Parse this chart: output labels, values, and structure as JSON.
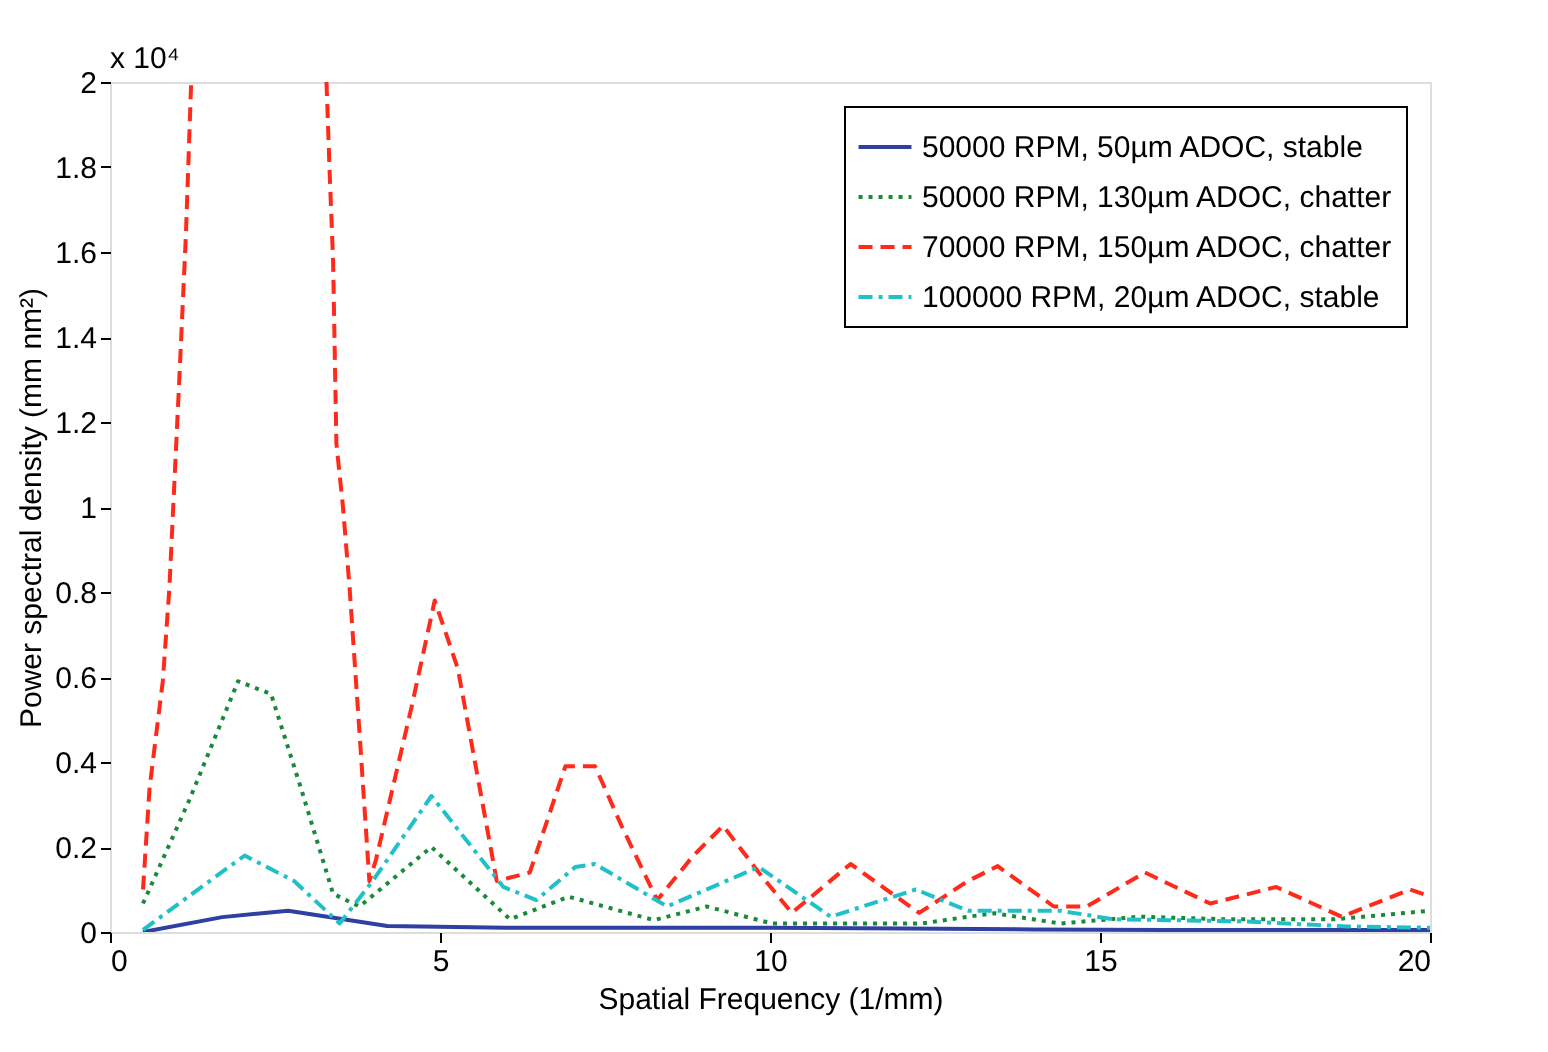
{
  "chart_data": {
    "type": "line",
    "xlabel": "Spatial Frequency (1/mm)",
    "ylabel": "Power spectral density (mm nm²)",
    "annotations": [
      "x 10⁴"
    ],
    "xlim": [
      0,
      20
    ],
    "xticks": [
      0,
      5,
      10,
      15,
      20
    ],
    "ylim": [
      0,
      2
    ],
    "yticks": [
      0,
      0.2,
      0.4,
      0.6,
      0.8,
      1,
      1.2,
      1.4,
      1.6,
      1.8,
      2
    ],
    "grid": false,
    "legend": "top right",
    "marker": "none",
    "series": [
      {
        "name": "50000 RPM, 50µm ADOC, stable",
        "color": "#3040a0",
        "line_style": "solid",
        "x": [
          0.5,
          1.7,
          2.7,
          4.2,
          6,
          8,
          10,
          12,
          14,
          16,
          18,
          20
        ],
        "values": [
          0,
          0.035,
          0.05,
          0.014,
          0.01,
          0.01,
          0.01,
          0.008,
          0.006,
          0.005,
          0.005,
          0.005
        ]
      },
      {
        "name": "50000 RPM, 130µm ADOC, chatter",
        "color": "#1a8a3a",
        "line_style": "dotted",
        "x": [
          0.5,
          1.2,
          1.94,
          2.44,
          2.89,
          3.38,
          3.78,
          4.87,
          6.06,
          6.95,
          8.24,
          9.04,
          10.03,
          12.3,
          13.0,
          13.4,
          14.4,
          15.6,
          16.9,
          18.56,
          20
        ],
        "values": [
          0.067,
          0.31,
          0.59,
          0.56,
          0.34,
          0.09,
          0.06,
          0.2,
          0.03,
          0.083,
          0.028,
          0.06,
          0.02,
          0.02,
          0.036,
          0.044,
          0.02,
          0.036,
          0.03,
          0.03,
          0.05
        ]
      },
      {
        "name": "70000 RPM, 150µm ADOC, chatter",
        "color": "#ff2a1a",
        "line_style": "dashed",
        "x": [
          0.5,
          0.6,
          0.8,
          0.9,
          1.05,
          1.15,
          1.23,
          2.2,
          3.28,
          3.33,
          3.38,
          3.43,
          3.53,
          3.63,
          3.78,
          3.93,
          4.03,
          4.57,
          4.92,
          5.27,
          5.86,
          6.36,
          6.9,
          7.35,
          7.75,
          8.29,
          8.84,
          9.29,
          9.83,
          10.33,
          11.22,
          12.26,
          13.0,
          13.45,
          14.3,
          14.8,
          15.68,
          16.67,
          17.67,
          18.66,
          19.7,
          20
        ],
        "values": [
          0.1,
          0.34,
          0.59,
          0.81,
          1.3,
          1.64,
          2,
          null,
          2,
          1.78,
          1.58,
          1.15,
          1.0,
          0.81,
          0.47,
          0.12,
          0.17,
          0.53,
          0.78,
          0.62,
          0.12,
          0.14,
          0.39,
          0.39,
          0.25,
          0.075,
          0.18,
          0.25,
          0.14,
          0.045,
          0.16,
          0.045,
          0.12,
          0.155,
          0.06,
          0.06,
          0.14,
          0.067,
          0.106,
          0.036,
          0.1,
          0.084
        ]
      },
      {
        "name": "100000 RPM, 20µm ADOC, stable",
        "color": "#20c0c8",
        "line_style": "dashdot",
        "x": [
          0.5,
          2.04,
          2.79,
          3.48,
          3.98,
          4.87,
          5.96,
          6.46,
          7.05,
          7.35,
          8.44,
          9.83,
          10.92,
          12.21,
          13.0,
          14.4,
          15.2,
          17.2,
          18.76,
          20
        ],
        "values": [
          0.005,
          0.18,
          0.12,
          0.02,
          0.12,
          0.32,
          0.106,
          0.075,
          0.153,
          0.16,
          0.06,
          0.153,
          0.036,
          0.1,
          0.05,
          0.05,
          0.03,
          0.025,
          0.013,
          0.01
        ]
      }
    ]
  }
}
